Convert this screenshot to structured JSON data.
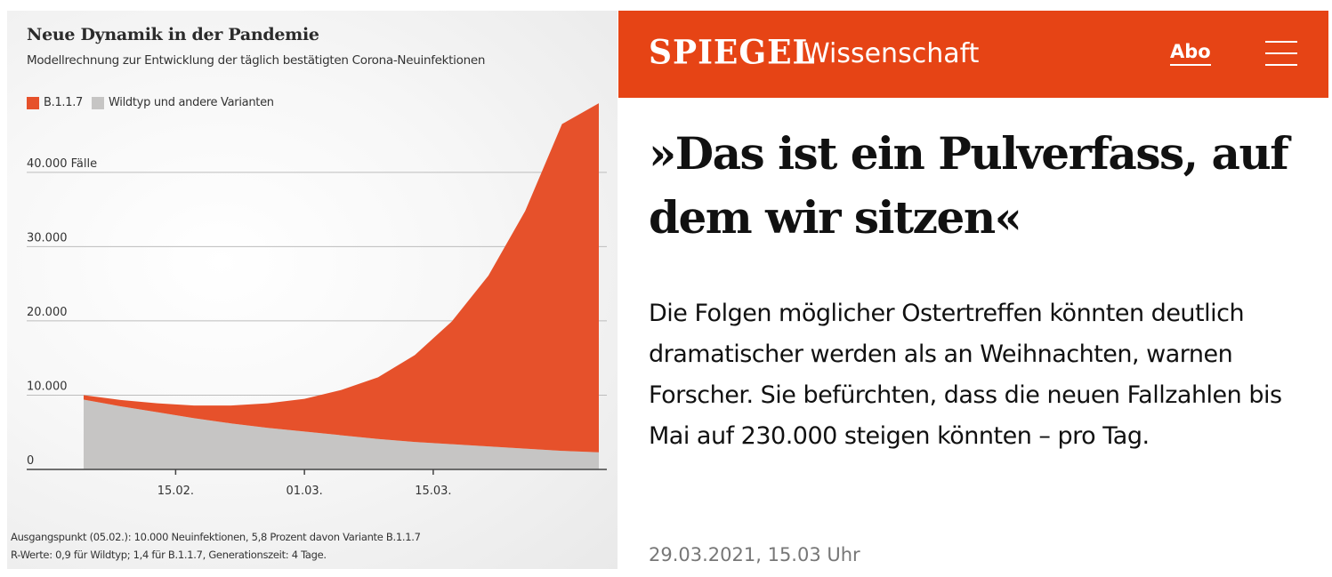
{
  "chart": {
    "title": "Neue Dynamik in der Pandemie",
    "subtitle": "Modellrechnung zur Entwicklung der täglich bestätigten Corona-Neuinfektionen",
    "footnote_line1": "Ausgangspunkt (05.02.): 10.000 Neuinfektionen, 5,8 Prozent davon Variante B.1.1.7",
    "footnote_line2": "R-Werte: 0,9 für Wildtyp; 1,4 für B.1.1.7, Generationszeit: 4 Tage."
  },
  "chart_data": {
    "type": "area",
    "stacked": true,
    "title": "Neue Dynamik in der Pandemie",
    "subtitle": "Modellrechnung zur Entwicklung der täglich bestätigten Corona-Neuinfektionen",
    "x_unit": "day",
    "x": [
      "2021-02-05",
      "2021-02-09",
      "2021-02-13",
      "2021-02-17",
      "2021-02-21",
      "2021-02-25",
      "2021-03-01",
      "2021-03-05",
      "2021-03-09",
      "2021-03-13",
      "2021-03-17",
      "2021-03-21",
      "2021-03-25",
      "2021-03-29",
      "2021-04-02"
    ],
    "xticks": [
      {
        "date": "2021-02-15",
        "label": "15.02."
      },
      {
        "date": "2021-03-01",
        "label": "01.03."
      },
      {
        "date": "2021-03-15",
        "label": "15.03."
      }
    ],
    "yticks": [
      {
        "value": 0,
        "label": "0"
      },
      {
        "value": 10000,
        "label": "10.000"
      },
      {
        "value": 20000,
        "label": "20.000"
      },
      {
        "value": 30000,
        "label": "30.000"
      },
      {
        "value": 40000,
        "label": "40.000 Fälle"
      }
    ],
    "ylim": [
      0,
      48000
    ],
    "grid": true,
    "legend_position": "top-left",
    "series": [
      {
        "name": "Wildtyp und andere Varianten",
        "color": "#c6c5c4",
        "values": [
          9400,
          8500,
          7700,
          6900,
          6200,
          5600,
          5100,
          4600,
          4100,
          3700,
          3400,
          3100,
          2800,
          2500,
          2300
        ]
      },
      {
        "name": "B.1.1.7",
        "color": "#e6512b",
        "values": [
          600,
          850,
          1200,
          1700,
          2400,
          3300,
          4400,
          6100,
          8300,
          11700,
          16500,
          23000,
          32000,
          44000,
          47000
        ]
      }
    ]
  },
  "brand": {
    "logo": "SPIEGEL",
    "section": "Wissenschaft",
    "abo": "Abo",
    "menu_icon": "hamburger-menu-icon"
  },
  "article": {
    "headline": "»Das ist ein Pulverfass, auf dem wir sitzen«",
    "teaser": "Die Folgen möglicher Ostertreffen könnten deutlich dramatischer werden als an Weihnachten, warnen Forscher. Sie befürchten, dass die neuen Fallzahlen bis Mai auf 230.000 steigen könnten – pro Tag.",
    "timestamp": "29.03.2021, 15.03 Uhr"
  },
  "colors": {
    "accent": "#e64415",
    "b117": "#e6512b",
    "wildtype": "#c6c5c4"
  }
}
